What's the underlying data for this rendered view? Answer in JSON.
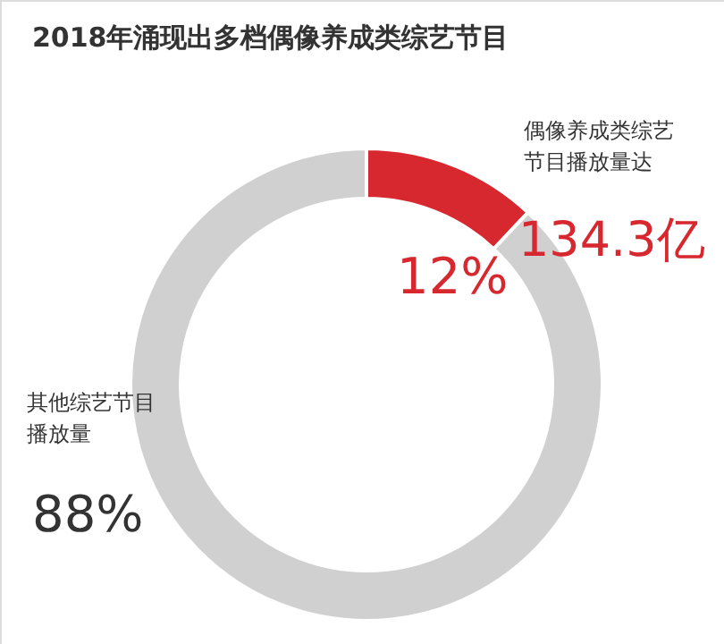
{
  "chart_data": {
    "type": "donut",
    "title": "2018年涌现出多档偶像养成类综艺节目",
    "categories": [
      "偶像养成类综艺节目播放量达",
      "其他综艺节目播放量"
    ],
    "values": [
      12,
      88
    ],
    "colors": [
      "#d7282f",
      "#d0d0d0"
    ],
    "value_labels": [
      "12%",
      "88%"
    ],
    "annotations": [
      "134.3亿"
    ]
  }
}
